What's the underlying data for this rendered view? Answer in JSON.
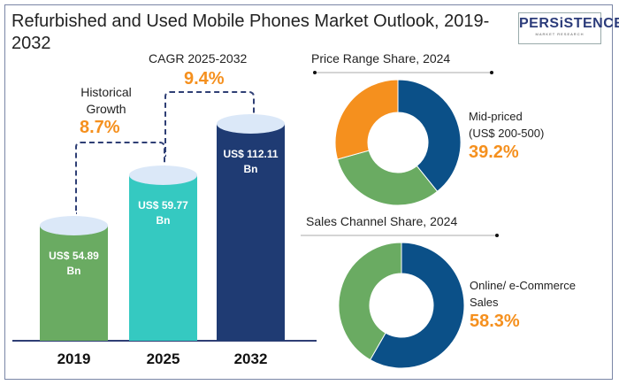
{
  "title": "Refurbished and Used Mobile Phones Market Outlook, 2019-2032",
  "logo": {
    "name": "PERSiSTENCE",
    "tagline": "MARKET RESEARCH"
  },
  "historical": {
    "label": "Historical Growth",
    "value": "8.7%"
  },
  "cagr": {
    "label": "CAGR 2025-2032",
    "value": "9.4%"
  },
  "chart_data": [
    {
      "type": "bar",
      "categories": [
        "2019",
        "2025",
        "2032"
      ],
      "values": [
        54.89,
        59.77,
        112.11
      ],
      "data_labels": [
        "US$ 54.89 Bn",
        "US$ 59.77 Bn",
        "US$ 112.11 Bn"
      ],
      "colors": [
        "#6aab62",
        "#35c9c1",
        "#1f3b73"
      ]
    },
    {
      "type": "pie",
      "title": "Price Range Share, 2024",
      "slices": [
        {
          "label": "Mid-priced (US$ 200-500)",
          "value": 39.2,
          "color": "#0b5088"
        },
        {
          "value": 31.5,
          "color": "#6aab62"
        },
        {
          "value": 29.3,
          "color": "#f5901e"
        }
      ],
      "annotation": {
        "label": "Mid-priced",
        "sub": "(US$ 200-500)",
        "value": "39.2%"
      }
    },
    {
      "type": "pie",
      "title": "Sales Channel Share, 2024",
      "slices": [
        {
          "label": "Online/ e-Commerce Sales",
          "value": 58.3,
          "color": "#0b5088"
        },
        {
          "value": 41.7,
          "color": "#6aab62"
        }
      ],
      "annotation": {
        "label": "Online/ e-Commerce",
        "sub": "Sales",
        "value": "58.3%"
      }
    }
  ]
}
